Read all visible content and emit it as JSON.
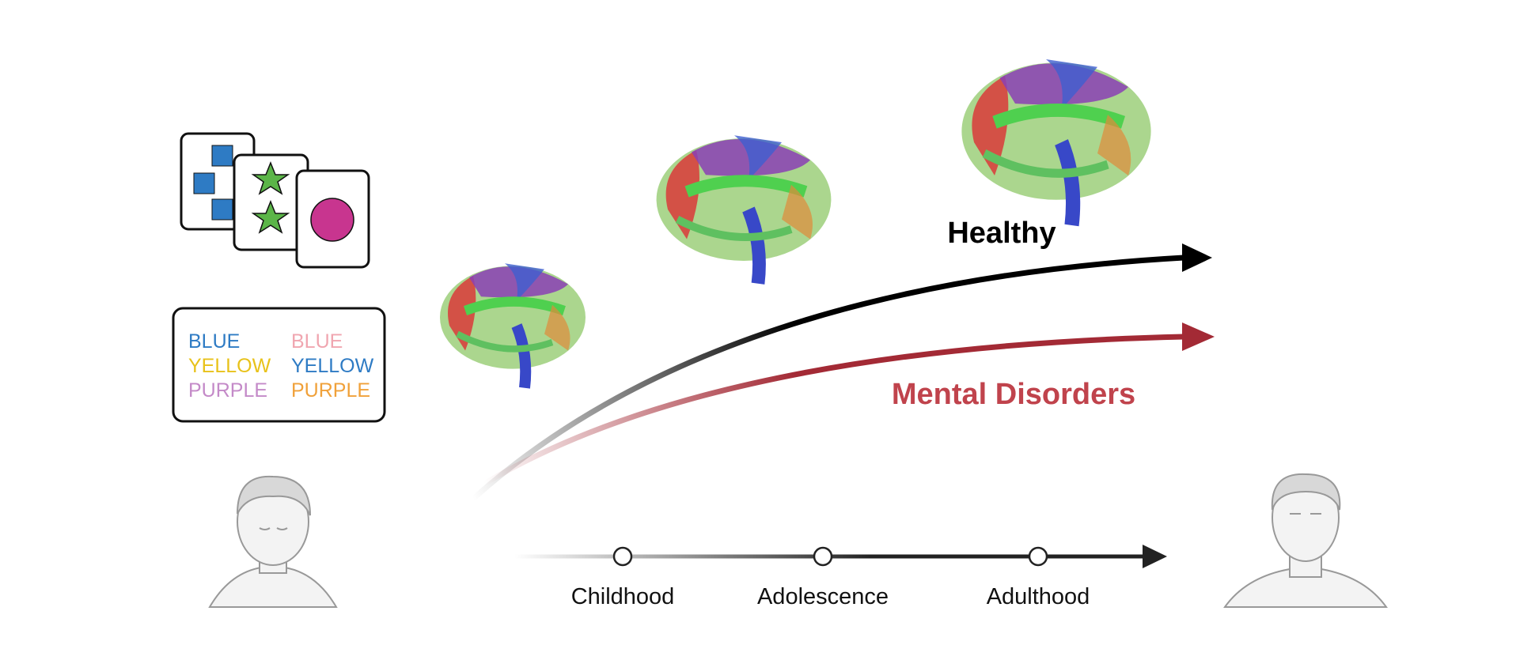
{
  "stroop_card": {
    "left_column": [
      "BLUE",
      "YELLOW",
      "PURPLE"
    ],
    "right_column": [
      "BLUE",
      "YELLOW",
      "PURPLE"
    ]
  },
  "trajectories": [
    {
      "label": "Healthy"
    },
    {
      "label": "Mental Disorders"
    }
  ],
  "timeline": {
    "stages": [
      "Childhood",
      "Adolescence",
      "Adulthood"
    ]
  }
}
